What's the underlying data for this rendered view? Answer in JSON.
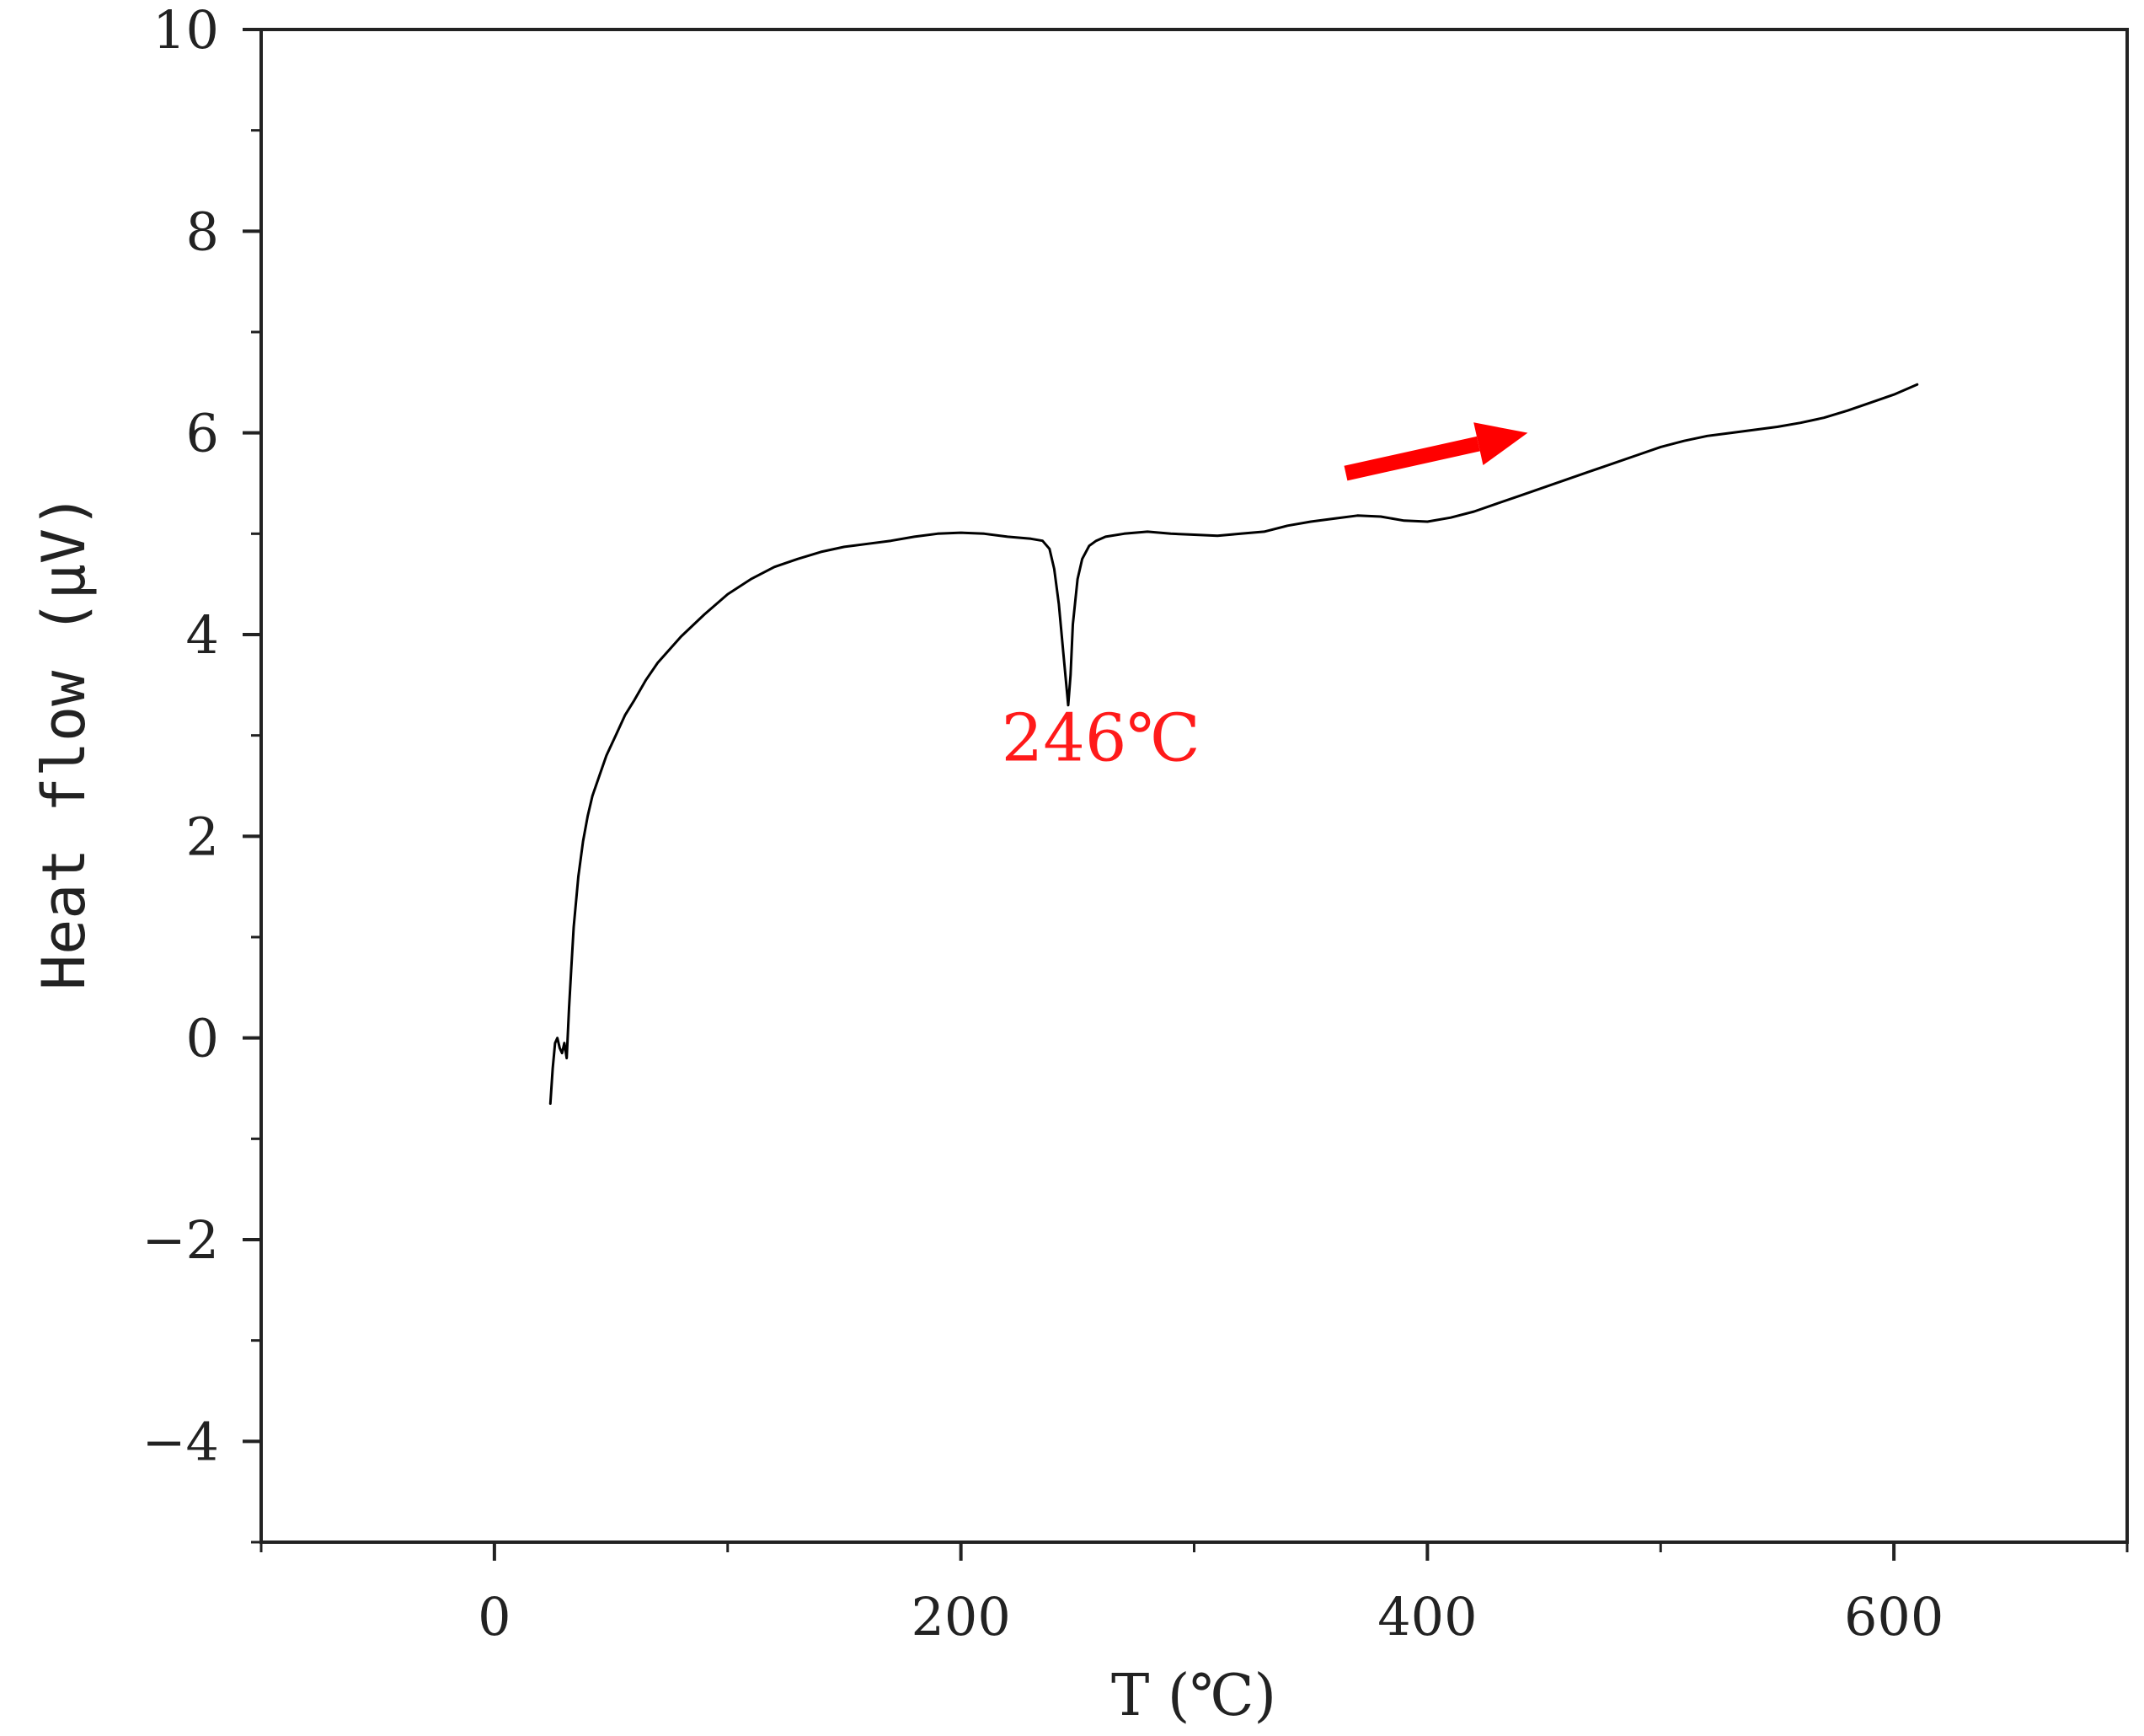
{
  "chart_data": {
    "type": "line",
    "xlabel": "T (℃)",
    "ylabel": "Heat flow (μV)",
    "xlim": [
      -100,
      700
    ],
    "ylim": [
      -5,
      10
    ],
    "x_ticks": [
      0,
      200,
      400,
      600
    ],
    "x_tick_labels": [
      "0",
      "200",
      "400",
      "600"
    ],
    "x_minor_ticks": [
      -100,
      100,
      300,
      500,
      700
    ],
    "y_ticks": [
      -4,
      -2,
      0,
      2,
      4,
      6,
      8,
      10
    ],
    "y_tick_labels": [
      "−4",
      "−2",
      "0",
      "2",
      "4",
      "6",
      "8",
      "10"
    ],
    "y_minor_ticks": [
      -5,
      -3,
      -1,
      1,
      3,
      5,
      7,
      9
    ],
    "grid": false,
    "series": [
      {
        "color": "#000000",
        "x": [
          24,
          25,
          26,
          27,
          28,
          29,
          30,
          31,
          32,
          33,
          34,
          36,
          38,
          40,
          42,
          45,
          48,
          52,
          56,
          60,
          65,
          70,
          75,
          80,
          90,
          100,
          110,
          120,
          130,
          140,
          150,
          160,
          170,
          180,
          190,
          200,
          210,
          220,
          230,
          235,
          238,
          240,
          242,
          244,
          245,
          246,
          247,
          248,
          250,
          252,
          255,
          258,
          262,
          270,
          280,
          290,
          300,
          310,
          320,
          330,
          340,
          350,
          360,
          370,
          380,
          390,
          400,
          410,
          420,
          430,
          440,
          450,
          460,
          470,
          480,
          490,
          500,
          510,
          520,
          530,
          540,
          550,
          560,
          570,
          580,
          590,
          600,
          610
        ],
        "y": [
          -0.65,
          -0.3,
          -0.05,
          0.0,
          -0.1,
          -0.15,
          -0.05,
          -0.2,
          0.3,
          0.7,
          1.1,
          1.6,
          1.95,
          2.2,
          2.4,
          2.6,
          2.8,
          3.0,
          3.2,
          3.35,
          3.55,
          3.72,
          3.85,
          3.98,
          4.2,
          4.4,
          4.55,
          4.67,
          4.75,
          4.82,
          4.87,
          4.9,
          4.93,
          4.97,
          5.0,
          5.01,
          5.0,
          4.97,
          4.95,
          4.93,
          4.85,
          4.65,
          4.3,
          3.8,
          3.55,
          3.3,
          3.6,
          4.1,
          4.55,
          4.75,
          4.88,
          4.93,
          4.97,
          5.0,
          5.02,
          5.0,
          4.99,
          4.98,
          5.0,
          5.02,
          5.08,
          5.12,
          5.15,
          5.18,
          5.17,
          5.13,
          5.12,
          5.16,
          5.22,
          5.3,
          5.38,
          5.46,
          5.54,
          5.62,
          5.7,
          5.78,
          5.86,
          5.92,
          5.97,
          6.0,
          6.03,
          6.06,
          6.1,
          6.15,
          6.22,
          6.3,
          6.38,
          6.48
        ]
      }
    ],
    "annotations": [
      {
        "text": "246℃",
        "color": "#ff1a1a",
        "x": 260,
        "y": 2.75
      },
      {
        "type": "arrow",
        "color": "#ff0000",
        "from": [
          365,
          5.6
        ],
        "to": [
          443,
          6.0
        ]
      }
    ]
  }
}
